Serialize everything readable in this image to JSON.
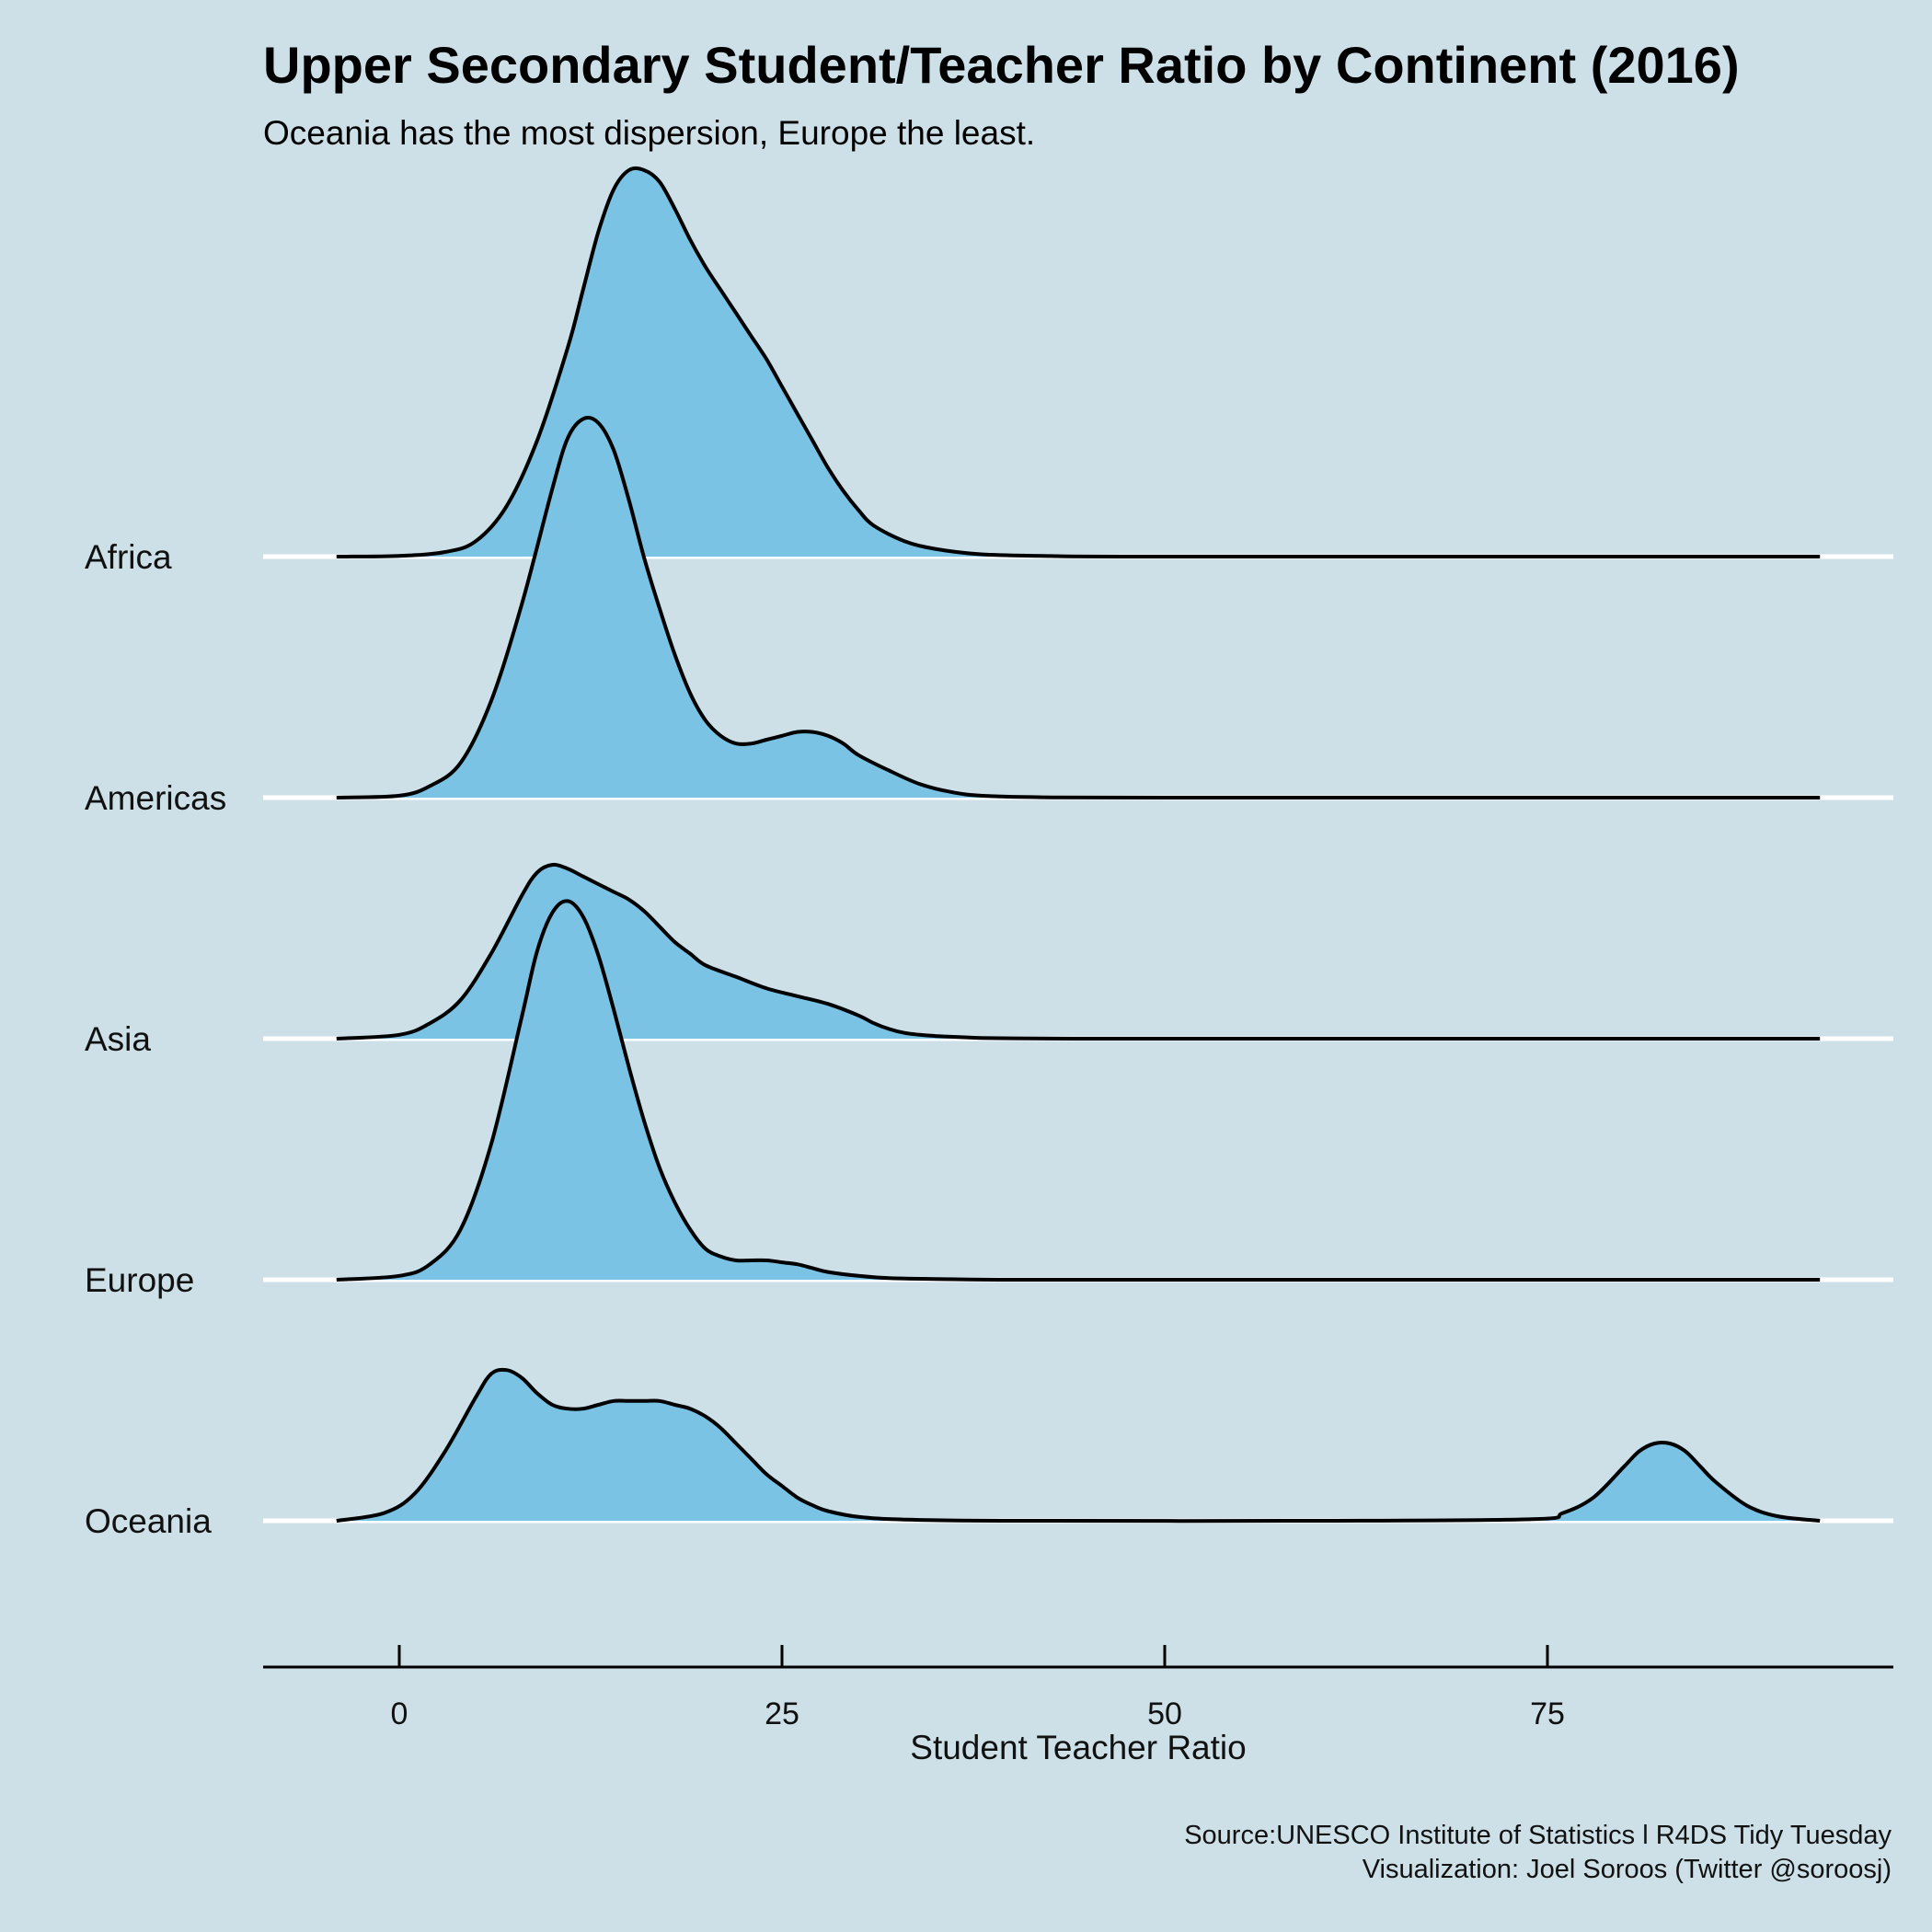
{
  "colors": {
    "background": "#cde0e8",
    "ridge_fill": "#7ac3e4",
    "ridge_stroke": "#000000",
    "baseline": "#ffffff"
  },
  "caption": {
    "line1": "Source:UNESCO Institute of Statistics  l  R4DS Tidy Tuesday",
    "line2": "Visualization: Joel Soroos (Twitter @soroosj)"
  },
  "chart_data": {
    "type": "ridgeline",
    "title": "Upper Secondary Student/Teacher Ratio by Continent (2016)",
    "subtitle": "Oceania has the most dispersion, Europe the least.",
    "xlabel": "Student Teacher Ratio",
    "ylabel": "",
    "xlim": [
      -9,
      97
    ],
    "xticks": [
      0,
      25,
      50,
      75
    ],
    "grid": "horizontal baselines only",
    "categories": [
      "Africa",
      "Americas",
      "Asia",
      "Europe",
      "Oceania"
    ],
    "density_scale_max": 1.0,
    "series": [
      {
        "name": "Africa",
        "x": [
          -4.1,
          0,
          3,
          5,
          7,
          9,
          11,
          12,
          13,
          14,
          15,
          16,
          17,
          18,
          19,
          20,
          21,
          22,
          23,
          24,
          25,
          26,
          27,
          28,
          29,
          30,
          31,
          33,
          35,
          38,
          42,
          50,
          92.8
        ],
        "density": [
          0.0,
          0.002,
          0.012,
          0.04,
          0.13,
          0.3,
          0.54,
          0.69,
          0.84,
          0.95,
          1.0,
          1.0,
          0.97,
          0.9,
          0.82,
          0.75,
          0.69,
          0.63,
          0.57,
          0.51,
          0.44,
          0.37,
          0.3,
          0.23,
          0.17,
          0.12,
          0.08,
          0.04,
          0.02,
          0.006,
          0.002,
          0.0,
          0.0
        ]
      },
      {
        "name": "Americas",
        "x": [
          -4.1,
          0,
          2,
          4,
          6,
          8,
          10,
          11,
          12,
          13,
          14,
          15,
          16,
          17,
          18,
          19,
          20,
          21,
          22,
          23,
          24,
          25,
          26,
          27,
          28,
          29,
          30,
          32,
          34,
          36,
          38,
          42,
          50,
          92.8
        ],
        "density": [
          0.0,
          0.005,
          0.03,
          0.09,
          0.25,
          0.5,
          0.8,
          0.93,
          0.98,
          0.97,
          0.9,
          0.77,
          0.62,
          0.49,
          0.37,
          0.27,
          0.2,
          0.16,
          0.14,
          0.14,
          0.15,
          0.16,
          0.17,
          0.17,
          0.16,
          0.14,
          0.11,
          0.07,
          0.035,
          0.015,
          0.005,
          0.001,
          0.0,
          0.0
        ]
      },
      {
        "name": "Asia",
        "x": [
          -4.1,
          0,
          2,
          4,
          6,
          8,
          9,
          10,
          11,
          12,
          13,
          14,
          15,
          16,
          17,
          18,
          19,
          20,
          22,
          24,
          26,
          28,
          30,
          31,
          32,
          33,
          34,
          35,
          36,
          38,
          40,
          44,
          50,
          92.8
        ],
        "density": [
          0.0,
          0.01,
          0.04,
          0.1,
          0.22,
          0.37,
          0.43,
          0.45,
          0.44,
          0.42,
          0.4,
          0.38,
          0.36,
          0.33,
          0.29,
          0.25,
          0.22,
          0.19,
          0.16,
          0.13,
          0.11,
          0.09,
          0.06,
          0.04,
          0.025,
          0.015,
          0.01,
          0.007,
          0.005,
          0.002,
          0.001,
          0.0,
          0.0,
          0.0
        ],
        "x_offset_note": ""
      },
      {
        "name": "Europe",
        "x": [
          -4.1,
          0,
          2,
          4,
          6,
          8,
          9,
          10,
          11,
          12,
          13,
          14,
          15,
          16,
          17,
          18,
          19,
          20,
          21,
          22,
          23,
          24,
          25,
          26,
          27,
          28,
          30,
          32,
          35,
          40,
          50,
          92.8
        ],
        "density": [
          0.0,
          0.01,
          0.04,
          0.13,
          0.35,
          0.68,
          0.85,
          0.95,
          0.98,
          0.94,
          0.84,
          0.7,
          0.55,
          0.41,
          0.29,
          0.2,
          0.13,
          0.08,
          0.06,
          0.05,
          0.05,
          0.05,
          0.045,
          0.04,
          0.03,
          0.02,
          0.01,
          0.004,
          0.002,
          0.0,
          0.0,
          0.0
        ]
      },
      {
        "name": "Oceania",
        "x": [
          -4.1,
          -1,
          1,
          3,
          5,
          6,
          7,
          8,
          9,
          10,
          11,
          12,
          13,
          14,
          15,
          16,
          17,
          18,
          19,
          20,
          21,
          22,
          23,
          24,
          25,
          26,
          27,
          28,
          30,
          33,
          40,
          60,
          74,
          76,
          78,
          80,
          81,
          82,
          83,
          84,
          85,
          86,
          88,
          90,
          92.8
        ],
        "density": [
          0.0,
          0.02,
          0.07,
          0.18,
          0.32,
          0.38,
          0.39,
          0.37,
          0.33,
          0.3,
          0.29,
          0.29,
          0.3,
          0.31,
          0.31,
          0.31,
          0.31,
          0.3,
          0.29,
          0.27,
          0.24,
          0.2,
          0.16,
          0.12,
          0.09,
          0.06,
          0.04,
          0.025,
          0.01,
          0.003,
          0.0,
          0.0,
          0.004,
          0.02,
          0.06,
          0.14,
          0.18,
          0.2,
          0.2,
          0.18,
          0.14,
          0.1,
          0.04,
          0.012,
          0.0
        ]
      }
    ]
  }
}
